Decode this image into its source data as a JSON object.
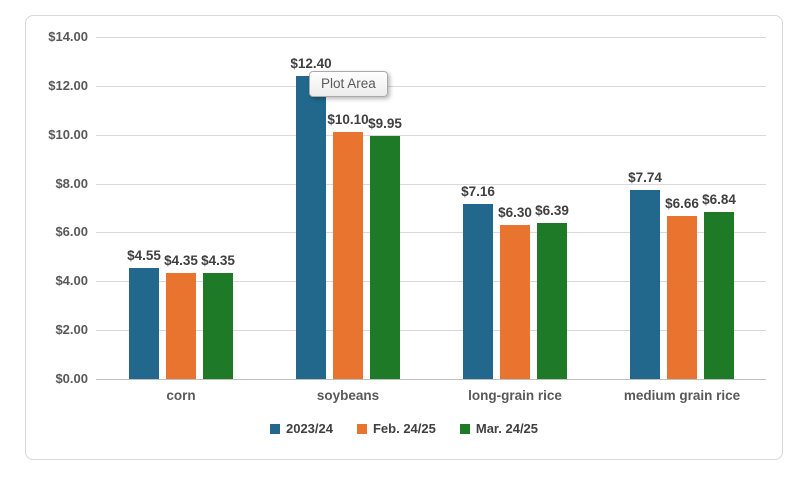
{
  "chart_data": {
    "type": "bar",
    "title": "",
    "categories": [
      "corn",
      "soybeans",
      "long-grain rice",
      "medium grain rice"
    ],
    "series": [
      {
        "name": "2023/24",
        "color": "#21688C",
        "values": [
          4.55,
          12.4,
          7.16,
          7.74
        ]
      },
      {
        "name": "Feb. 24/25",
        "color": "#E8742F",
        "values": [
          4.35,
          10.1,
          6.3,
          6.66
        ]
      },
      {
        "name": "Mar. 24/25",
        "color": "#1E7A26",
        "values": [
          4.35,
          9.95,
          6.39,
          6.84
        ]
      }
    ],
    "value_prefix": "$",
    "value_decimals": 2,
    "ylim": [
      0,
      14
    ],
    "y_tick_step": 2,
    "y_tick_labels": [
      "$0.00",
      "$2.00",
      "$4.00",
      "$6.00",
      "$8.00",
      "$10.00",
      "$12.00",
      "$14.00"
    ],
    "grid": true,
    "legend_position": "bottom",
    "data_labels_shown": true
  },
  "tooltip": {
    "label": "Plot Area"
  },
  "colors": {
    "grid": "#D9D9D9",
    "axis_text": "#595959",
    "data_label_text": "#404040",
    "frame_border": "#D9D9D9"
  }
}
